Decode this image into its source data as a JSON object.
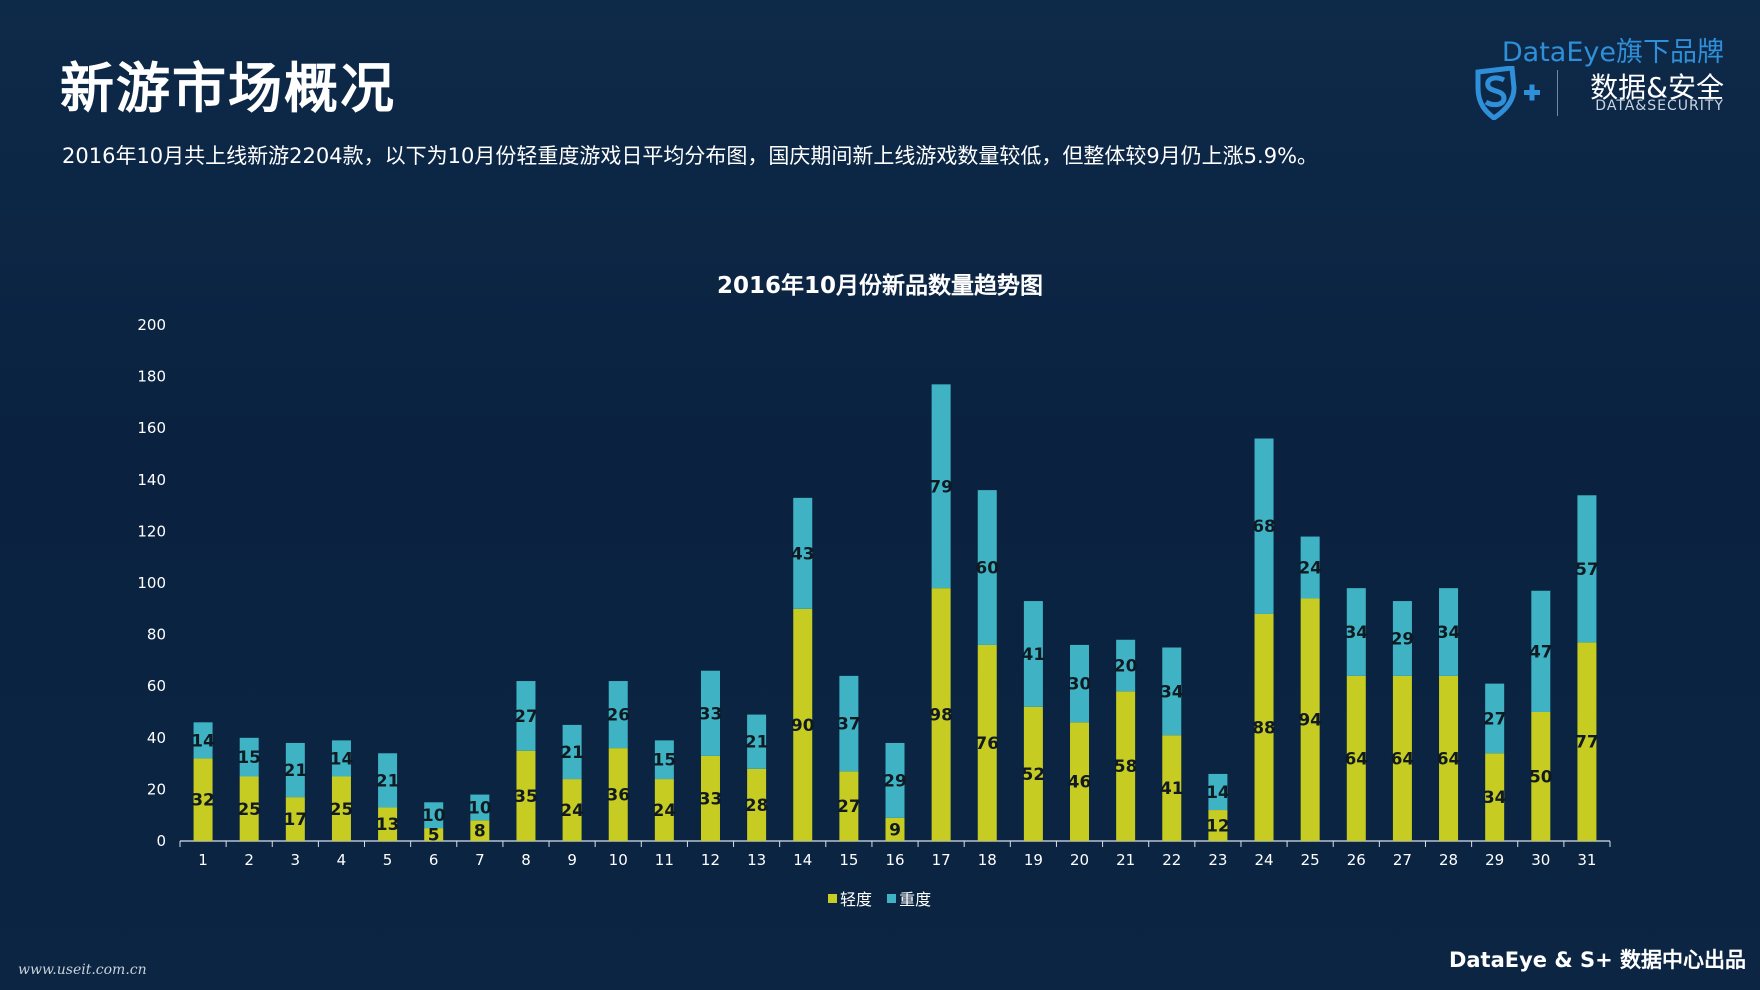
{
  "header": {
    "title": "新游市场概况",
    "subtitle": "2016年10月共上线新游2204款，以下为10月份轻重度游戏日平均分布图，国庆期间新上线游戏数量较低，但整体较9月仍上涨5.9%。"
  },
  "brand": {
    "top": "DataEye旗下品牌",
    "cn": "数据&安全",
    "en": "DATA&SECURITY",
    "color": "#2f8fd8"
  },
  "footer": {
    "credit": "DataEye & S+ 数据中心出品",
    "watermark": "www.useit.com.cn"
  },
  "colors": {
    "light": "#c6cc22",
    "heavy": "#3fb3c4",
    "axis": "#ffffff"
  },
  "chart_data": {
    "type": "bar",
    "stacked": true,
    "title": "2016年10月份新品数量趋势图",
    "xlabel": "",
    "ylabel": "",
    "ylim": [
      0,
      200
    ],
    "yticks": [
      0,
      20,
      40,
      60,
      80,
      100,
      120,
      140,
      160,
      180,
      200
    ],
    "grid": false,
    "legend_position": "bottom",
    "categories": [
      "1",
      "2",
      "3",
      "4",
      "5",
      "6",
      "7",
      "8",
      "9",
      "10",
      "11",
      "12",
      "13",
      "14",
      "15",
      "16",
      "17",
      "18",
      "19",
      "20",
      "21",
      "22",
      "23",
      "24",
      "25",
      "26",
      "27",
      "28",
      "29",
      "30",
      "31"
    ],
    "series": [
      {
        "name": "轻度",
        "values": [
          32,
          25,
          17,
          25,
          13,
          5,
          8,
          35,
          24,
          36,
          24,
          33,
          28,
          90,
          27,
          9,
          98,
          76,
          52,
          46,
          58,
          41,
          12,
          88,
          94,
          64,
          64,
          64,
          34,
          50,
          77
        ]
      },
      {
        "name": "重度",
        "values": [
          14,
          15,
          21,
          14,
          21,
          10,
          10,
          27,
          21,
          26,
          15,
          33,
          21,
          43,
          37,
          29,
          79,
          60,
          41,
          30,
          20,
          34,
          14,
          68,
          24,
          34,
          29,
          34,
          27,
          47,
          57
        ]
      }
    ]
  }
}
